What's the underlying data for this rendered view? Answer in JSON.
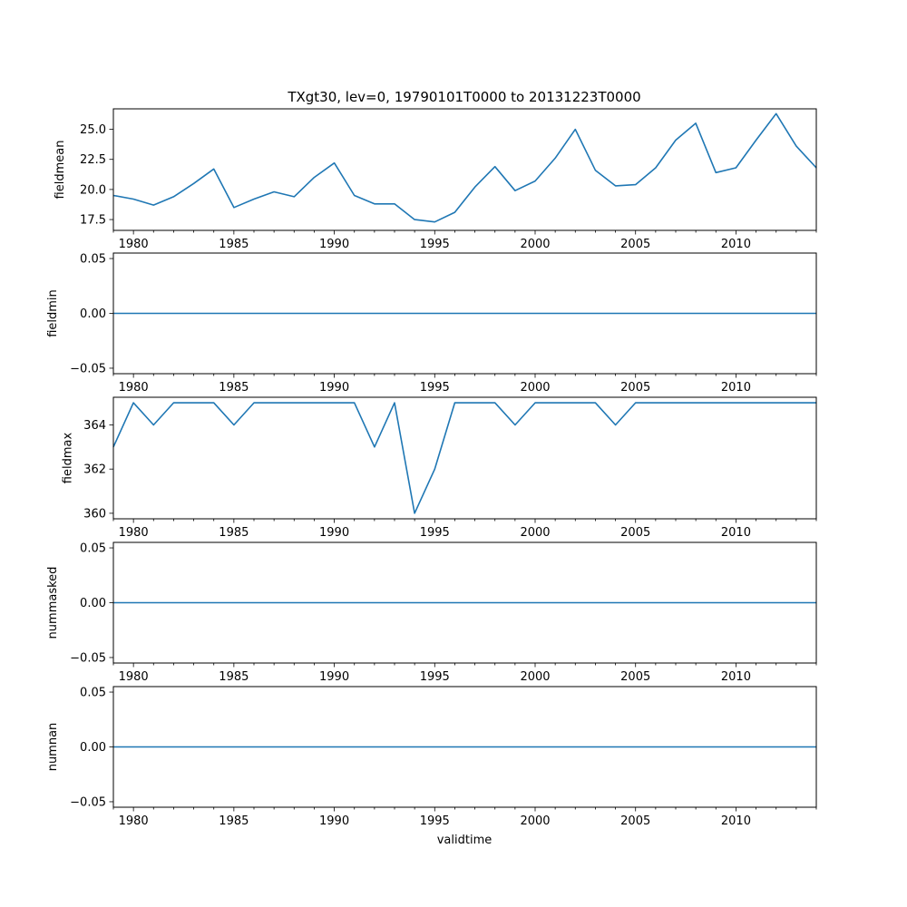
{
  "title": "TXgt30, lev=0, 19790101T0000 to 20131223T0000",
  "xlabel": "validtime",
  "colors": {
    "line": "#1f77b4",
    "frame": "#000000",
    "background": "#ffffff"
  },
  "chart_data": [
    {
      "type": "line",
      "ylabel": "fieldmean",
      "xlim": [
        1979,
        2014
      ],
      "ylim": [
        16.6,
        26.7
      ],
      "x_ticks": [
        1980,
        1985,
        1990,
        1995,
        2000,
        2005,
        2010
      ],
      "x_tick_labels": [
        "1980",
        "1985",
        "1990",
        "1995",
        "2000",
        "2005",
        "2010"
      ],
      "y_ticks": [
        17.5,
        20.0,
        22.5,
        25.0
      ],
      "y_tick_labels": [
        "17.5",
        "20.0",
        "22.5",
        "25.0"
      ],
      "x": [
        1979,
        1980,
        1981,
        1982,
        1983,
        1984,
        1985,
        1986,
        1987,
        1988,
        1989,
        1990,
        1991,
        1992,
        1993,
        1994,
        1995,
        1996,
        1997,
        1998,
        1999,
        2000,
        2001,
        2002,
        2003,
        2004,
        2005,
        2006,
        2007,
        2008,
        2009,
        2010,
        2011,
        2012,
        2013,
        2014
      ],
      "values": [
        19.5,
        19.2,
        18.7,
        19.4,
        20.5,
        21.7,
        18.5,
        19.2,
        19.8,
        19.4,
        21.0,
        22.2,
        19.5,
        18.8,
        18.8,
        17.5,
        17.3,
        18.1,
        20.2,
        21.9,
        19.9,
        20.7,
        22.6,
        25.0,
        21.6,
        20.3,
        20.4,
        21.8,
        24.1,
        25.5,
        21.4,
        21.8,
        24.1,
        26.3,
        23.6,
        21.8
      ]
    },
    {
      "type": "line",
      "ylabel": "fieldmin",
      "xlim": [
        1979,
        2014
      ],
      "ylim": [
        -0.055,
        0.055
      ],
      "x_ticks": [
        1980,
        1985,
        1990,
        1995,
        2000,
        2005,
        2010
      ],
      "x_tick_labels": [
        "1980",
        "1985",
        "1990",
        "1995",
        "2000",
        "2005",
        "2010"
      ],
      "y_ticks": [
        -0.05,
        0.0,
        0.05
      ],
      "y_tick_labels": [
        "−0.05",
        "0.00",
        "0.05"
      ],
      "x": [
        1979,
        1980,
        1981,
        1982,
        1983,
        1984,
        1985,
        1986,
        1987,
        1988,
        1989,
        1990,
        1991,
        1992,
        1993,
        1994,
        1995,
        1996,
        1997,
        1998,
        1999,
        2000,
        2001,
        2002,
        2003,
        2004,
        2005,
        2006,
        2007,
        2008,
        2009,
        2010,
        2011,
        2012,
        2013,
        2014
      ],
      "values": [
        0,
        0,
        0,
        0,
        0,
        0,
        0,
        0,
        0,
        0,
        0,
        0,
        0,
        0,
        0,
        0,
        0,
        0,
        0,
        0,
        0,
        0,
        0,
        0,
        0,
        0,
        0,
        0,
        0,
        0,
        0,
        0,
        0,
        0,
        0,
        0
      ]
    },
    {
      "type": "line",
      "ylabel": "fieldmax",
      "xlim": [
        1979,
        2014
      ],
      "ylim": [
        359.75,
        365.25
      ],
      "x_ticks": [
        1980,
        1985,
        1990,
        1995,
        2000,
        2005,
        2010
      ],
      "x_tick_labels": [
        "1980",
        "1985",
        "1990",
        "1995",
        "2000",
        "2005",
        "2010"
      ],
      "y_ticks": [
        360,
        362,
        364
      ],
      "y_tick_labels": [
        "360",
        "362",
        "364"
      ],
      "x": [
        1979,
        1980,
        1981,
        1982,
        1983,
        1984,
        1985,
        1986,
        1987,
        1988,
        1989,
        1990,
        1991,
        1992,
        1993,
        1994,
        1995,
        1996,
        1997,
        1998,
        1999,
        2000,
        2001,
        2002,
        2003,
        2004,
        2005,
        2006,
        2007,
        2008,
        2009,
        2010,
        2011,
        2012,
        2013,
        2014
      ],
      "values": [
        363,
        365,
        364,
        365,
        365,
        365,
        364,
        365,
        365,
        365,
        365,
        365,
        365,
        363,
        365,
        360,
        362,
        365,
        365,
        365,
        364,
        365,
        365,
        365,
        365,
        364,
        365,
        365,
        365,
        365,
        365,
        365,
        365,
        365,
        365,
        365
      ]
    },
    {
      "type": "line",
      "ylabel": "nummasked",
      "xlim": [
        1979,
        2014
      ],
      "ylim": [
        -0.055,
        0.055
      ],
      "x_ticks": [
        1980,
        1985,
        1990,
        1995,
        2000,
        2005,
        2010
      ],
      "x_tick_labels": [
        "1980",
        "1985",
        "1990",
        "1995",
        "2000",
        "2005",
        "2010"
      ],
      "y_ticks": [
        -0.05,
        0.0,
        0.05
      ],
      "y_tick_labels": [
        "−0.05",
        "0.00",
        "0.05"
      ],
      "x": [
        1979,
        1980,
        1981,
        1982,
        1983,
        1984,
        1985,
        1986,
        1987,
        1988,
        1989,
        1990,
        1991,
        1992,
        1993,
        1994,
        1995,
        1996,
        1997,
        1998,
        1999,
        2000,
        2001,
        2002,
        2003,
        2004,
        2005,
        2006,
        2007,
        2008,
        2009,
        2010,
        2011,
        2012,
        2013,
        2014
      ],
      "values": [
        0,
        0,
        0,
        0,
        0,
        0,
        0,
        0,
        0,
        0,
        0,
        0,
        0,
        0,
        0,
        0,
        0,
        0,
        0,
        0,
        0,
        0,
        0,
        0,
        0,
        0,
        0,
        0,
        0,
        0,
        0,
        0,
        0,
        0,
        0,
        0
      ]
    },
    {
      "type": "line",
      "ylabel": "numnan",
      "xlim": [
        1979,
        2014
      ],
      "ylim": [
        -0.055,
        0.055
      ],
      "x_ticks": [
        1980,
        1985,
        1990,
        1995,
        2000,
        2005,
        2010
      ],
      "x_tick_labels": [
        "1980",
        "1985",
        "1990",
        "1995",
        "2000",
        "2005",
        "2010"
      ],
      "y_ticks": [
        -0.05,
        0.0,
        0.05
      ],
      "y_tick_labels": [
        "−0.05",
        "0.00",
        "0.05"
      ],
      "x": [
        1979,
        1980,
        1981,
        1982,
        1983,
        1984,
        1985,
        1986,
        1987,
        1988,
        1989,
        1990,
        1991,
        1992,
        1993,
        1994,
        1995,
        1996,
        1997,
        1998,
        1999,
        2000,
        2001,
        2002,
        2003,
        2004,
        2005,
        2006,
        2007,
        2008,
        2009,
        2010,
        2011,
        2012,
        2013,
        2014
      ],
      "values": [
        0,
        0,
        0,
        0,
        0,
        0,
        0,
        0,
        0,
        0,
        0,
        0,
        0,
        0,
        0,
        0,
        0,
        0,
        0,
        0,
        0,
        0,
        0,
        0,
        0,
        0,
        0,
        0,
        0,
        0,
        0,
        0,
        0,
        0,
        0,
        0
      ]
    }
  ]
}
